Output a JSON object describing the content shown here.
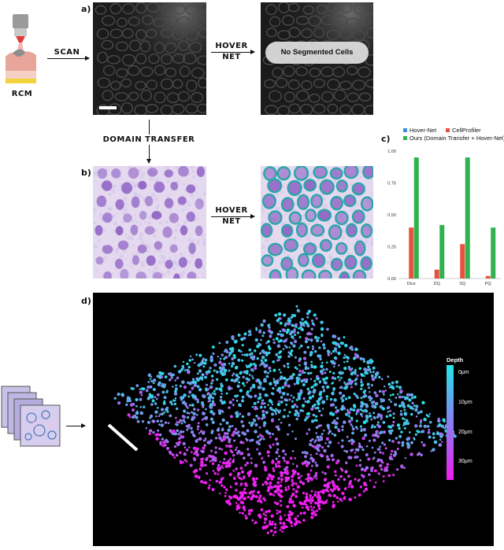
{
  "panels": {
    "a": "a)",
    "b": "b)",
    "c": "c)",
    "d": "d)"
  },
  "scan_label": "SCAN",
  "rcm_label": "RCM",
  "hover_net_label_top": [
    "HOVER",
    "NET"
  ],
  "hover_net_label_bottom": [
    "HOVER",
    "NET"
  ],
  "no_segmented_cells": "No Segmented Cells",
  "domain_transfer_label": "DOMAIN TRANSFER",
  "colors": {
    "hover_net": "#3b8fe0",
    "cellprofiler": "#e8513d",
    "ours": "#2fb24f",
    "he_bg": "#e4d9ef",
    "nucleus": "#8e62c4",
    "outline": "#2aa6a8",
    "depth_top": "#22e6e6",
    "depth_bottom": "#f01ef0"
  },
  "chart_data": {
    "type": "bar",
    "categories": [
      "Dice",
      "DQ",
      "SQ",
      "PQ"
    ],
    "series": [
      {
        "name": "Hover-Net",
        "values": [
          0,
          0,
          0,
          0
        ]
      },
      {
        "name": "CellProfiler",
        "values": [
          0.4,
          0.07,
          0.27,
          0.02
        ]
      },
      {
        "name": "Ours (Domain Transfer + Hover-Net)",
        "values": [
          0.95,
          0.42,
          0.95,
          0.4
        ]
      }
    ],
    "yticks": [
      "0.00",
      "0.25",
      "0.50",
      "0.75",
      "1.00"
    ],
    "ylim": [
      0,
      1
    ],
    "legend_position": "top"
  },
  "depth_legend": {
    "title": "Depth",
    "ticks": [
      "0μm",
      "10μm",
      "20μm",
      "30μm"
    ]
  }
}
